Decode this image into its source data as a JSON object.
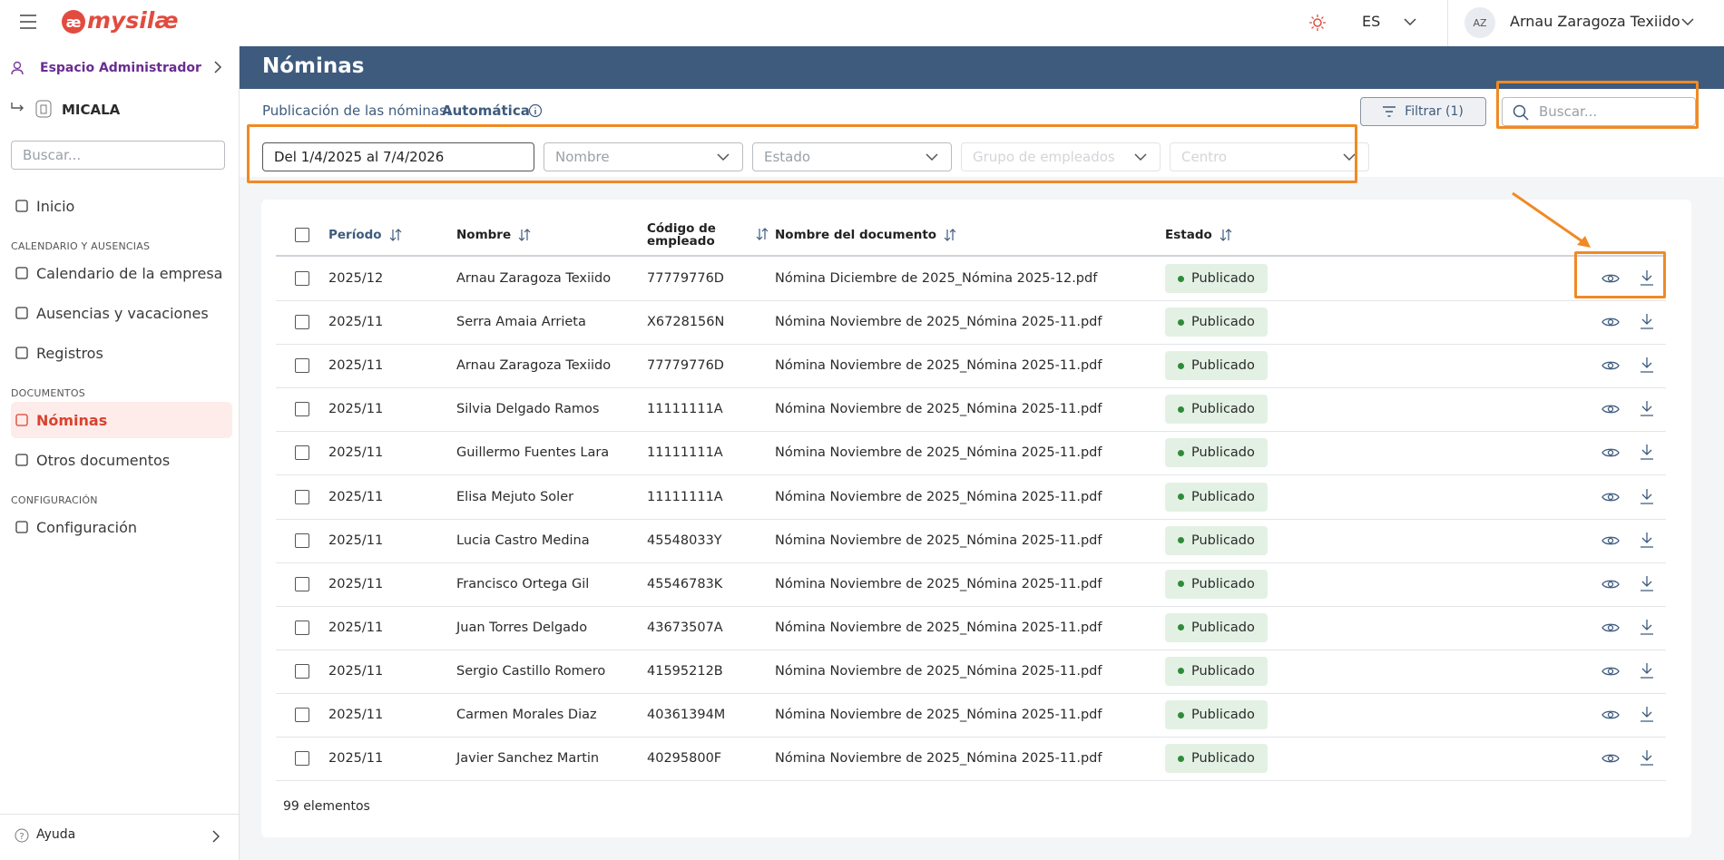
{
  "topbar": {
    "logo_mark": "æ",
    "logo_text": "mysilæ",
    "language": "ES",
    "avatar": "AZ",
    "user": "Arnau Zaragoza Texiido"
  },
  "sidebar": {
    "workspace": "Espacio Administrador",
    "company": "MICALA",
    "search_placeholder": "Buscar...",
    "items": [
      {
        "kind": "link",
        "label": "Inicio"
      },
      {
        "kind": "section",
        "label": "CALENDARIO Y AUSENCIAS"
      },
      {
        "kind": "link",
        "label": "Calendario de la empresa"
      },
      {
        "kind": "link",
        "label": "Ausencias y vacaciones"
      },
      {
        "kind": "link",
        "label": "Registros"
      },
      {
        "kind": "section",
        "label": "DOCUMENTOS"
      },
      {
        "kind": "active",
        "label": "Nóminas"
      },
      {
        "kind": "link",
        "label": "Otros documentos"
      },
      {
        "kind": "section",
        "label": "CONFIGURACIÓN"
      },
      {
        "kind": "link",
        "label": "Configuración"
      }
    ],
    "help": "Ayuda"
  },
  "page": {
    "title": "Nóminas",
    "publication_label": "Publicación de las nóminas:",
    "publication_value": "Automática",
    "filter_button": "Filtrar (1)",
    "search_placeholder": "Buscar...",
    "filters": [
      "Del 1/4/2025 al 7/4/2026",
      "Nombre",
      "Estado",
      "Grupo de empleados",
      "Centro"
    ]
  },
  "table": {
    "columns": [
      "Período",
      "Nombre",
      "Código de empleado",
      "Nombre del documento",
      "Estado"
    ],
    "rows": [
      [
        "2025/12",
        "Arnau Zaragoza Texiido",
        "77779776D",
        "Nómina Diciembre de 2025_Nómina 2025-12.pdf",
        "Publicado"
      ],
      [
        "2025/11",
        "Serra Amaia Arrieta",
        "X6728156N",
        "Nómina Noviembre de 2025_Nómina 2025-11.pdf",
        "Publicado"
      ],
      [
        "2025/11",
        "Arnau Zaragoza Texiido",
        "77779776D",
        "Nómina Noviembre de 2025_Nómina 2025-11.pdf",
        "Publicado"
      ],
      [
        "2025/11",
        "Silvia Delgado Ramos",
        "11111111A",
        "Nómina Noviembre de 2025_Nómina 2025-11.pdf",
        "Publicado"
      ],
      [
        "2025/11",
        "Guillermo Fuentes Lara",
        "11111111A",
        "Nómina Noviembre de 2025_Nómina 2025-11.pdf",
        "Publicado"
      ],
      [
        "2025/11",
        "Elisa Mejuto Soler",
        "11111111A",
        "Nómina Noviembre de 2025_Nómina 2025-11.pdf",
        "Publicado"
      ],
      [
        "2025/11",
        "Lucia Castro Medina",
        "45548033Y",
        "Nómina Noviembre de 2025_Nómina 2025-11.pdf",
        "Publicado"
      ],
      [
        "2025/11",
        "Francisco Ortega Gil",
        "45546783K",
        "Nómina Noviembre de 2025_Nómina 2025-11.pdf",
        "Publicado"
      ],
      [
        "2025/11",
        "Juan Torres Delgado",
        "43673507A",
        "Nómina Noviembre de 2025_Nómina 2025-11.pdf",
        "Publicado"
      ],
      [
        "2025/11",
        "Sergio Castillo Romero",
        "41595212B",
        "Nómina Noviembre de 2025_Nómina 2025-11.pdf",
        "Publicado"
      ],
      [
        "2025/11",
        "Carmen Morales Diaz",
        "40361394M",
        "Nómina Noviembre de 2025_Nómina 2025-11.pdf",
        "Publicado"
      ],
      [
        "2025/11",
        "Javier Sanchez Martin",
        "40295800F",
        "Nómina Noviembre de 2025_Nómina 2025-11.pdf",
        "Publicado"
      ]
    ],
    "footer": "99 elementos"
  }
}
